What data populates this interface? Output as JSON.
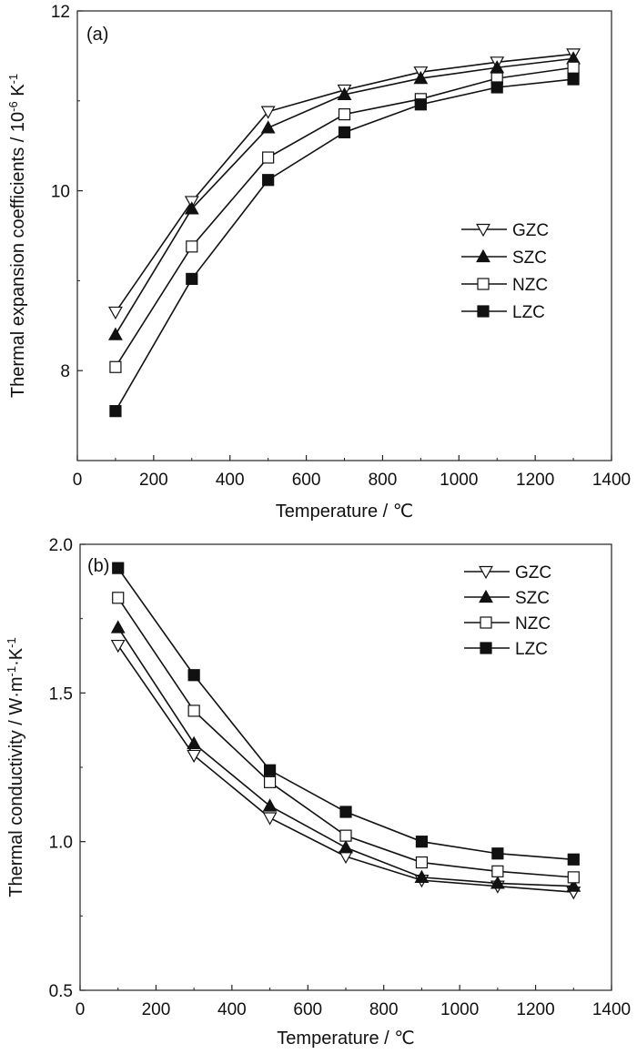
{
  "chart_data": [
    {
      "type": "line",
      "panel_label": "(a)",
      "xlabel": "Temperature / ℃",
      "ylabel": "Thermal expansion coefficients / 10⁻⁶ K⁻¹",
      "xlim": [
        0,
        1400
      ],
      "ylim": [
        7,
        12
      ],
      "xticks": [
        0,
        200,
        400,
        600,
        800,
        1000,
        1200,
        1400
      ],
      "yticks": [
        8,
        10,
        12
      ],
      "legend_position": "right-middle",
      "x": [
        100,
        300,
        500,
        700,
        900,
        1100,
        1300
      ],
      "series": [
        {
          "name": "GZC",
          "marker": "triangle-down-open",
          "values": [
            8.65,
            9.88,
            10.88,
            11.12,
            11.32,
            11.43,
            11.52
          ]
        },
        {
          "name": "SZC",
          "marker": "triangle-up-filled",
          "values": [
            8.4,
            9.8,
            10.7,
            11.07,
            11.25,
            11.37,
            11.47
          ]
        },
        {
          "name": "NZC",
          "marker": "square-open",
          "values": [
            8.04,
            9.38,
            10.37,
            10.85,
            11.02,
            11.25,
            11.37
          ]
        },
        {
          "name": "LZC",
          "marker": "square-filled",
          "values": [
            7.55,
            9.02,
            10.12,
            10.65,
            10.96,
            11.15,
            11.24
          ]
        }
      ]
    },
    {
      "type": "line",
      "panel_label": "(b)",
      "xlabel": "Temperature / ℃",
      "ylabel": "Thermal conductivity / W·m⁻¹·K⁻¹",
      "xlim": [
        0,
        1400
      ],
      "ylim": [
        0.5,
        2.0
      ],
      "xticks": [
        0,
        200,
        400,
        600,
        800,
        1000,
        1200,
        1400
      ],
      "yticks": [
        0.5,
        1.0,
        1.5,
        2.0
      ],
      "legend_position": "top-right",
      "x": [
        100,
        300,
        500,
        700,
        900,
        1100,
        1300
      ],
      "series": [
        {
          "name": "GZC",
          "marker": "triangle-down-open",
          "values": [
            1.66,
            1.29,
            1.08,
            0.95,
            0.87,
            0.85,
            0.83
          ]
        },
        {
          "name": "SZC",
          "marker": "triangle-up-filled",
          "values": [
            1.72,
            1.33,
            1.12,
            0.98,
            0.88,
            0.86,
            0.85
          ]
        },
        {
          "name": "NZC",
          "marker": "square-open",
          "values": [
            1.82,
            1.44,
            1.2,
            1.02,
            0.93,
            0.9,
            0.88
          ]
        },
        {
          "name": "LZC",
          "marker": "square-filled",
          "values": [
            1.92,
            1.56,
            1.24,
            1.1,
            1.0,
            0.96,
            0.94
          ]
        }
      ]
    }
  ]
}
